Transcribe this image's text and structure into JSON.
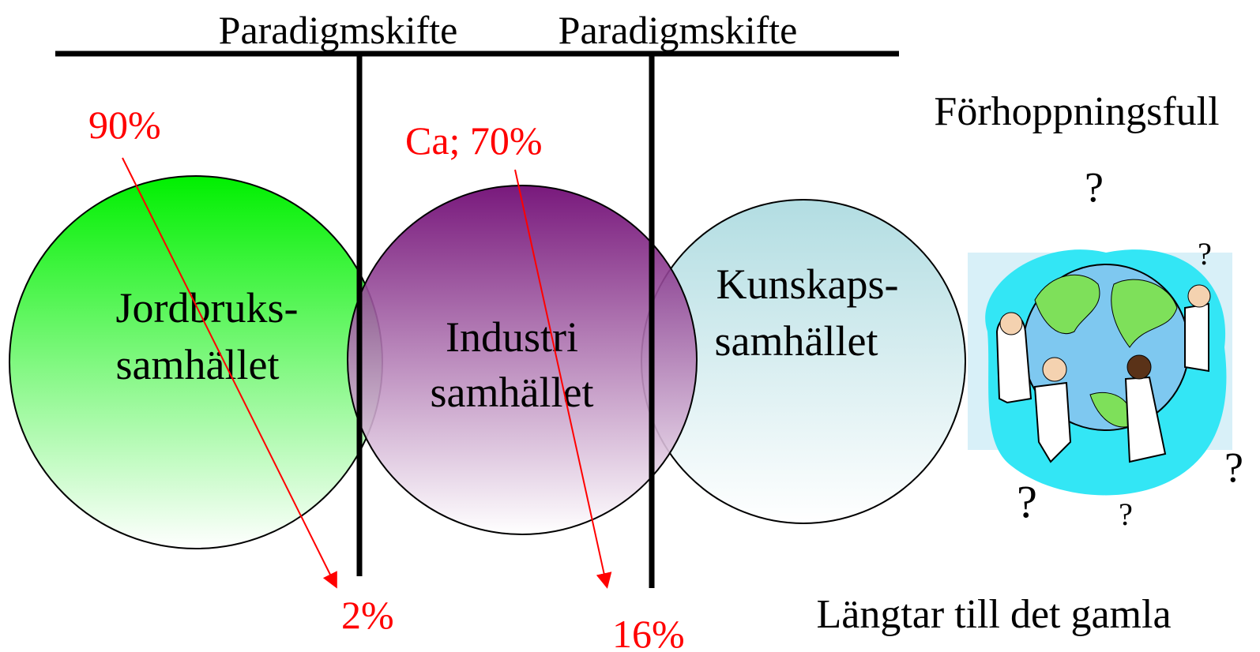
{
  "header": {
    "labels": [
      "Paradigmskifte",
      "Paradigmskifte"
    ]
  },
  "circles": [
    {
      "lines": [
        "Jordbruks-",
        "samhället"
      ]
    },
    {
      "lines": [
        "Industri",
        "samhället"
      ]
    },
    {
      "lines": [
        "Kunskaps-",
        "samhället"
      ]
    }
  ],
  "annotations": [
    {
      "from": "90%",
      "to": "2%"
    },
    {
      "from": "Ca; 70%",
      "to": "16%"
    }
  ],
  "future": {
    "hope": "Förhoppningsfull",
    "longing": "Längtar till det gamla",
    "marks": [
      "?",
      "?",
      "?",
      "?",
      "?"
    ]
  }
}
